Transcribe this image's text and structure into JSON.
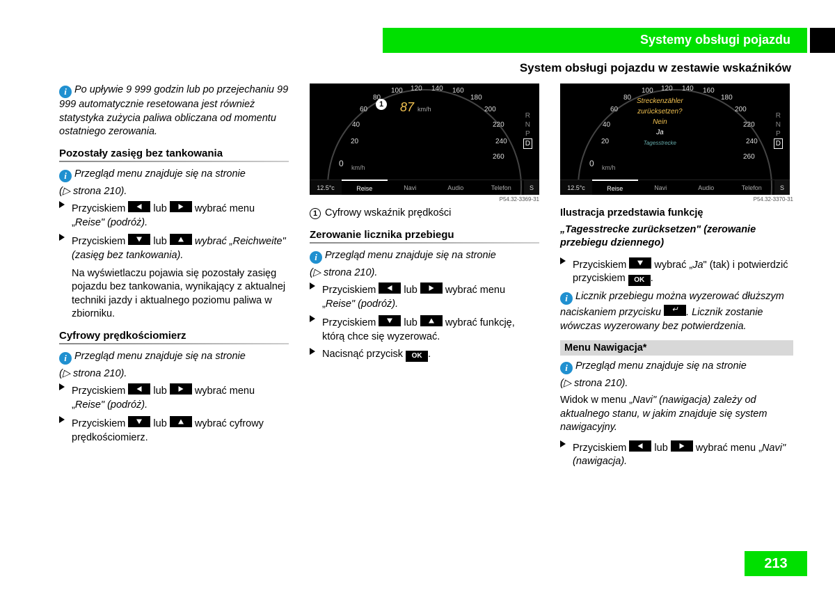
{
  "header": {
    "chapter_title": "Systemy obsługi pojazdu",
    "section_title": "System obsługi pojazdu w zestawie wskaźników",
    "page_number": "213"
  },
  "col1": {
    "info1": "Po upływie 9 999 godzin lub po przejechaniu 99 999 automatycznie resetowana jest również statystyka zużycia paliwa obliczana od momentu ostatniego zerowania.",
    "h1": "Pozostały zasięg bez tankowania",
    "info2_a": "Przegląd menu znajduje się na stronie",
    "info2_b": "(▷ strona 210).",
    "s1_a": "Przyciskiem ",
    "s1_b": " lub ",
    "s1_c": " wybrać menu „",
    "s1_d": "Reise",
    "s1_e": "\" (podróż).",
    "s2_a": "Przyciskiem ",
    "s2_b": " lub ",
    "s2_c": " wybrać „",
    "s2_d": "Reichweite",
    "s2_e": "\" (zasięg bez tankowania).",
    "s2_note": "Na wyświetlaczu pojawia się pozostały zasięg pojazdu bez tankowania, wynikający z aktualnej techniki jazdy i aktualnego poziomu paliwa w zbiorniku.",
    "h2": "Cyfrowy prędkościomierz",
    "info3_a": "Przegląd menu znajduje się na stronie",
    "info3_b": "(▷ strona 210).",
    "s3_a": "Przyciskiem ",
    "s3_b": " lub ",
    "s3_c": " wybrać menu „",
    "s3_d": "Reise",
    "s3_e": "\" (podróż).",
    "s4_a": "Przyciskiem ",
    "s4_b": " lub ",
    "s4_c": " wybrać cyfrowy prędkościomierz."
  },
  "col2": {
    "speedo1": {
      "ticks": [
        "0",
        "20",
        "40",
        "60",
        "80",
        "100",
        "120",
        "140",
        "160",
        "180",
        "200",
        "220",
        "240",
        "260"
      ],
      "tick_pos": [
        [
          40,
          100
        ],
        [
          34,
          78
        ],
        [
          36,
          54
        ],
        [
          47,
          32
        ],
        [
          66,
          15
        ],
        [
          92,
          5
        ],
        [
          120,
          2
        ],
        [
          150,
          2
        ],
        [
          180,
          5
        ],
        [
          206,
          15
        ],
        [
          226,
          32
        ],
        [
          238,
          54
        ],
        [
          242,
          78
        ],
        [
          238,
          100
        ]
      ],
      "center_speed": "87",
      "center_unit": "km/h",
      "kmh": "km/h",
      "temp": "12.5°c",
      "tabs": [
        "Reise",
        "Navi",
        "Audio",
        "Telefon"
      ],
      "tab_selected": 0,
      "s_badge": "S",
      "gears": [
        "R",
        "N",
        "P",
        "D"
      ],
      "gear_active": 3,
      "img_code": "P54.32-3369-31"
    },
    "caption_1": "Cyfrowy wskaźnik prędkości",
    "h1": "Zerowanie licznika przebiegu",
    "info1_a": "Przegląd menu znajduje się na stronie",
    "info1_b": "(▷ strona 210).",
    "s1_a": "Przyciskiem ",
    "s1_b": " lub ",
    "s1_c": " wybrać menu „",
    "s1_d": "Reise",
    "s1_e": "\" (podróż).",
    "s2_a": "Przyciskiem ",
    "s2_b": " lub ",
    "s2_c": " wybrać funkcję, którą chce się wyzerować.",
    "s3_a": "Nacisnąć przycisk ",
    "s3_b": ".",
    "ok_label": "OK"
  },
  "col3": {
    "speedo2": {
      "ticks": [
        "0",
        "20",
        "40",
        "60",
        "80",
        "100",
        "120",
        "140",
        "160",
        "180",
        "200",
        "220",
        "240",
        "260"
      ],
      "tick_pos": [
        [
          40,
          100
        ],
        [
          34,
          78
        ],
        [
          36,
          54
        ],
        [
          47,
          32
        ],
        [
          66,
          15
        ],
        [
          92,
          5
        ],
        [
          120,
          2
        ],
        [
          150,
          2
        ],
        [
          180,
          5
        ],
        [
          206,
          15
        ],
        [
          226,
          32
        ],
        [
          238,
          54
        ],
        [
          242,
          78
        ],
        [
          238,
          100
        ]
      ],
      "reset_q1": "Streckenzähler",
      "reset_q2": "zurücksetzen?",
      "opt_no": "Nein",
      "opt_yes": "Ja",
      "sub": "Tagesstrecke",
      "kmh": "km/h",
      "temp": "12.5°c",
      "tabs": [
        "Reise",
        "Navi",
        "Audio",
        "Telefon"
      ],
      "tab_selected": 0,
      "s_badge": "S",
      "gears": [
        "R",
        "N",
        "P",
        "D"
      ],
      "gear_active": 3,
      "img_code": "P54.32-3370-31"
    },
    "caption_a": "Ilustracja przedstawia funkcję",
    "caption_b": "„Tagesstrecke zurücksetzen\" (zerowanie przebiegu dziennego)",
    "s1_a": "Przyciskiem ",
    "s1_b": " wybrać „",
    "s1_c": "Ja",
    "s1_d": "\" (tak) i potwierdzić przyciskiem ",
    "s1_e": ".",
    "ok_label": "OK",
    "info1_a": "Licznik przebiegu można wyzerować dłuższym naciskaniem przycisku ",
    "info1_b": ". Licznik zostanie wówczas wyzerowany bez potwierdzenia.",
    "menu_heading": "Menu Nawigacja*",
    "info2_a": "Przegląd menu znajduje się na stronie",
    "info2_b": "(▷ strona 210).",
    "p1_a": "Widok w menu „",
    "p1_b": "Navi",
    "p1_c": "\" (nawigacja) zależy od aktualnego stanu, w jakim znajduje się system nawigacyjny.",
    "s2_a": "Przyciskiem ",
    "s2_b": " lub ",
    "s2_c": " wybrać menu „",
    "s2_d": "Navi",
    "s2_e": "\" (nawigacja)."
  }
}
